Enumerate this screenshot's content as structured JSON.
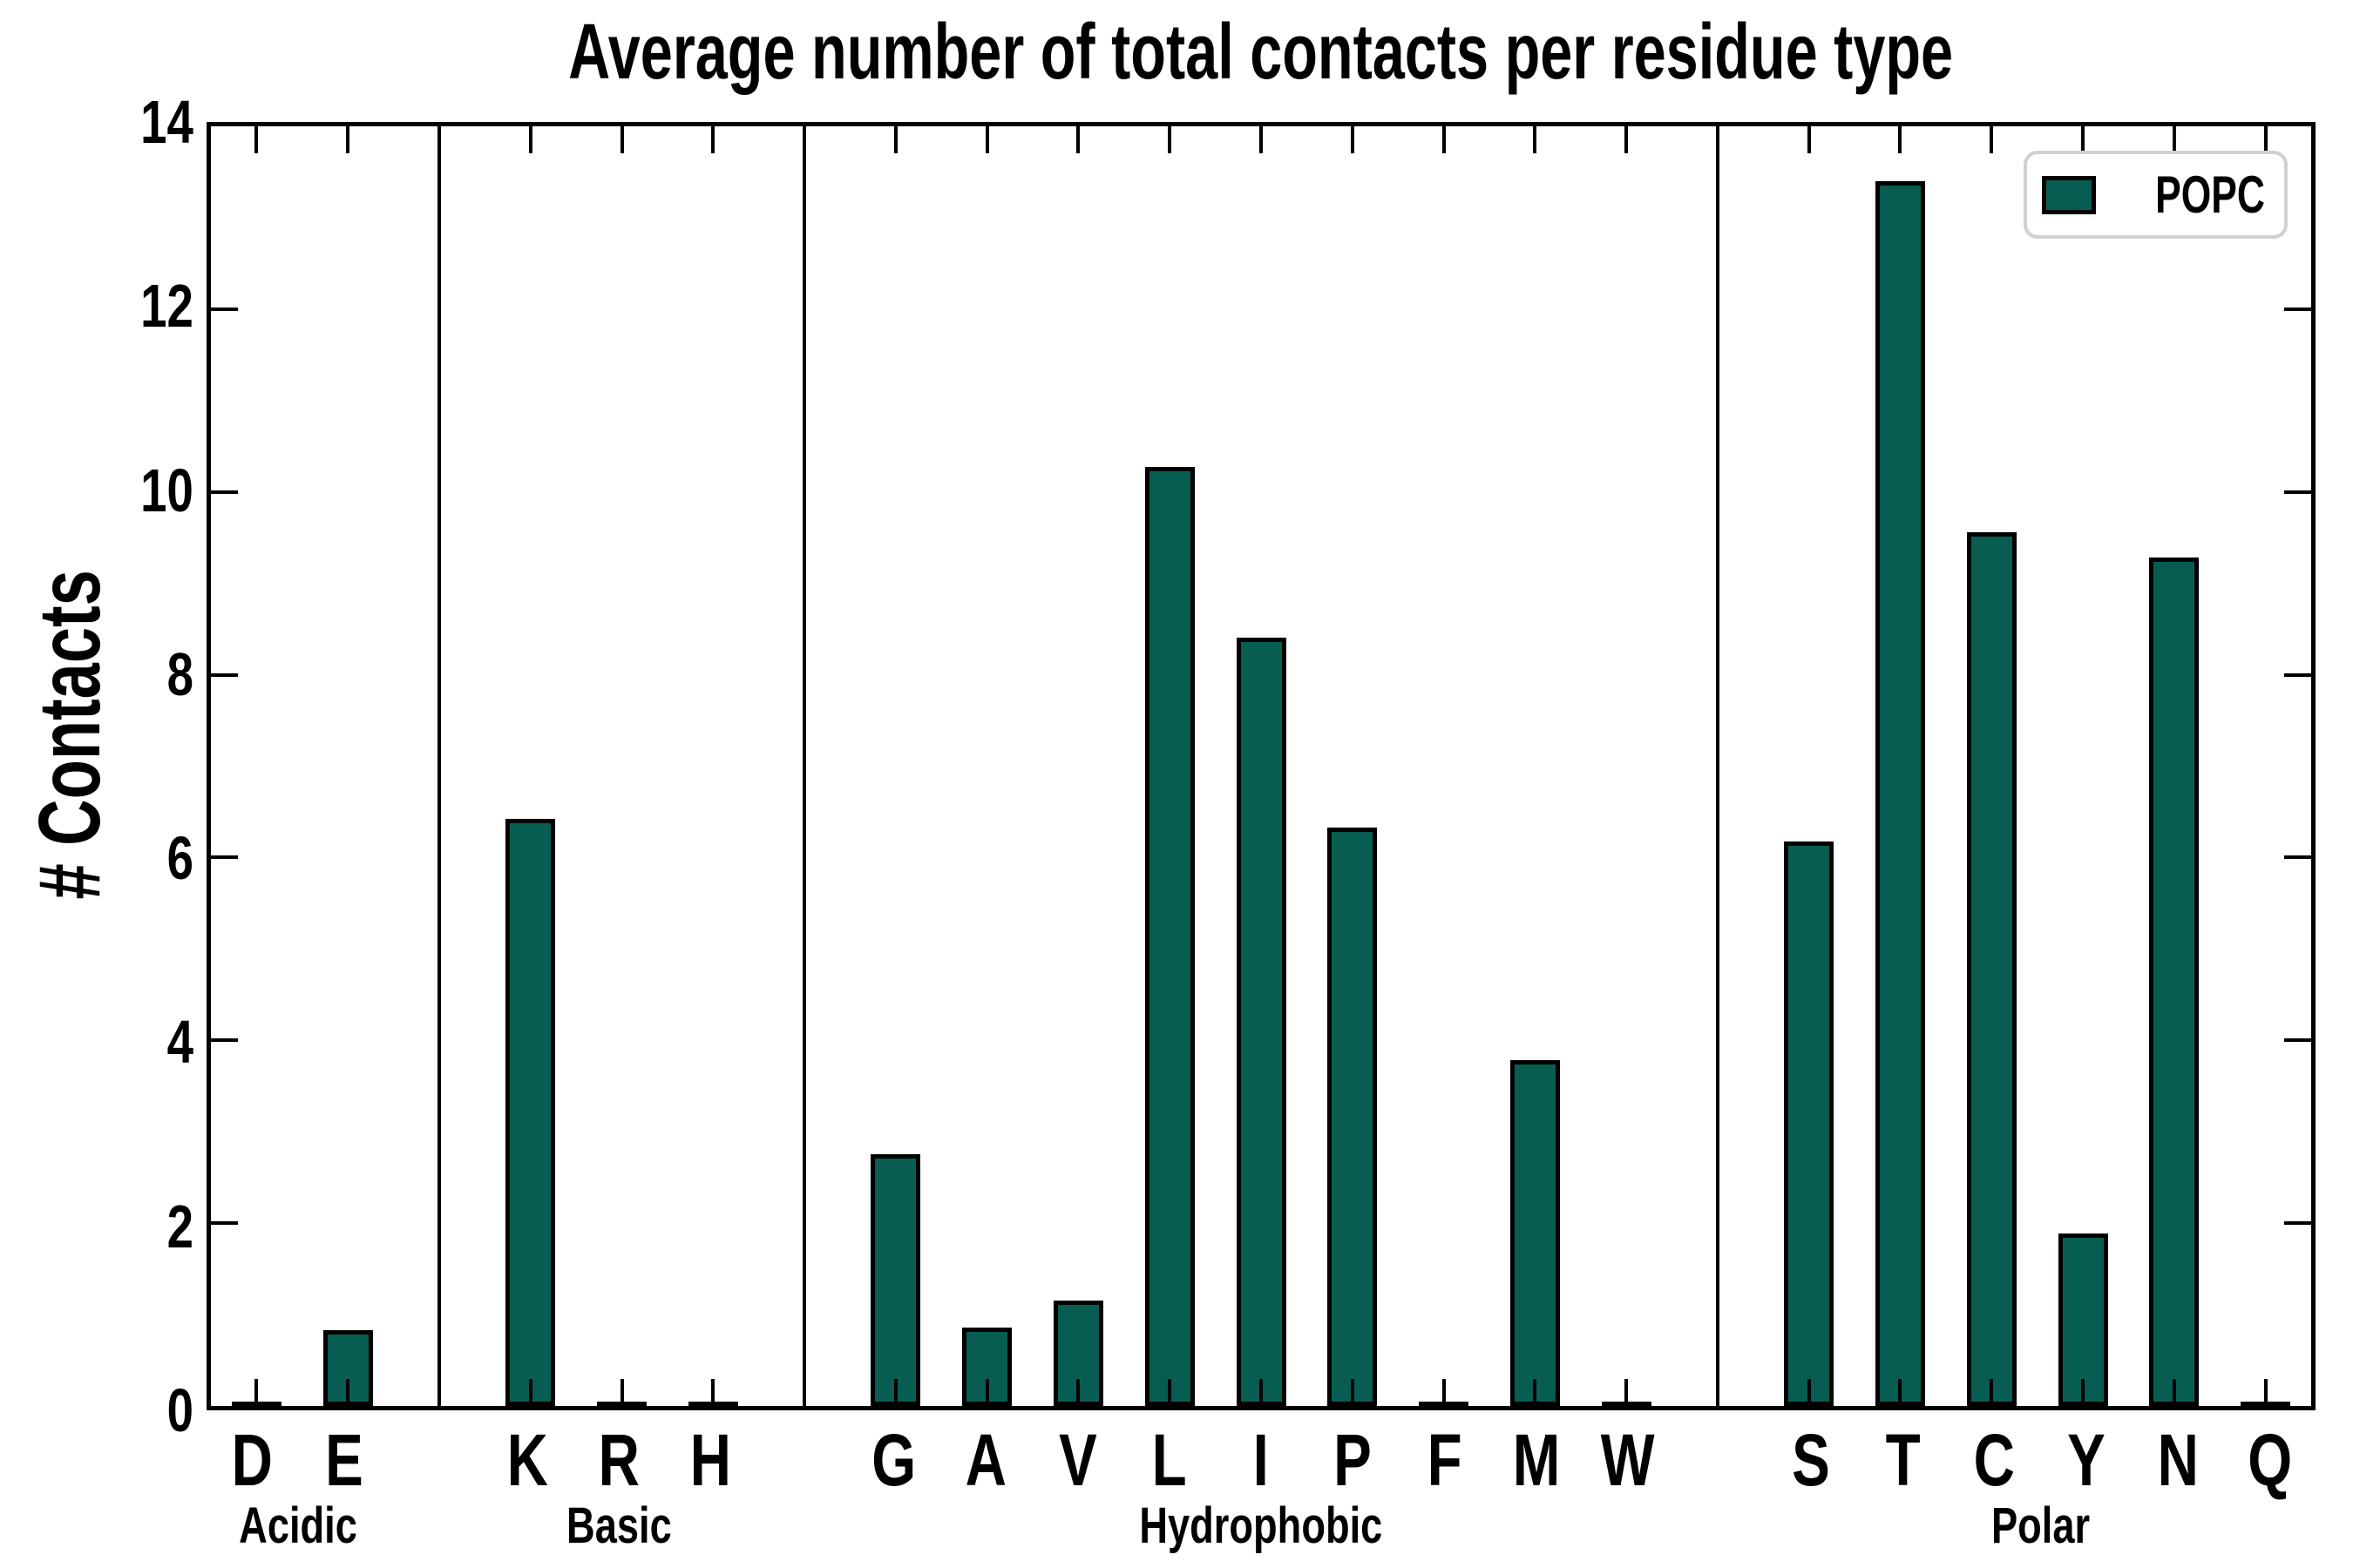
{
  "chart_data": {
    "type": "bar",
    "title": "Average number of total contacts per residue type",
    "ylabel": "# Contacts",
    "xlabel": "",
    "ylim": [
      0,
      14
    ],
    "yticks": [
      0,
      2,
      4,
      6,
      8,
      10,
      12,
      14
    ],
    "grid": false,
    "legend": {
      "label": "POPC",
      "position": "upper right"
    },
    "colors": {
      "bar_fill": "#085d52",
      "bar_edge": "#000000",
      "axis": "#000000",
      "legend_border": "#d0d0d0",
      "background": "#ffffff"
    },
    "groups": [
      {
        "name": "Acidic",
        "categories": [
          "D",
          "E"
        ],
        "values": [
          0,
          0.83
        ]
      },
      {
        "name": "Basic",
        "categories": [
          "K",
          "R",
          "H"
        ],
        "values": [
          6.42,
          0,
          0
        ]
      },
      {
        "name": "Hydrophobic",
        "categories": [
          "G",
          "A",
          "V",
          "L",
          "I",
          "P",
          "F",
          "M",
          "W"
        ],
        "values": [
          2.75,
          0.86,
          1.15,
          10.27,
          8.41,
          6.33,
          0,
          3.78,
          0
        ]
      },
      {
        "name": "Polar",
        "categories": [
          "S",
          "T",
          "C",
          "Y",
          "N",
          "Q"
        ],
        "values": [
          6.18,
          13.4,
          9.56,
          1.89,
          9.28,
          0
        ]
      }
    ]
  }
}
